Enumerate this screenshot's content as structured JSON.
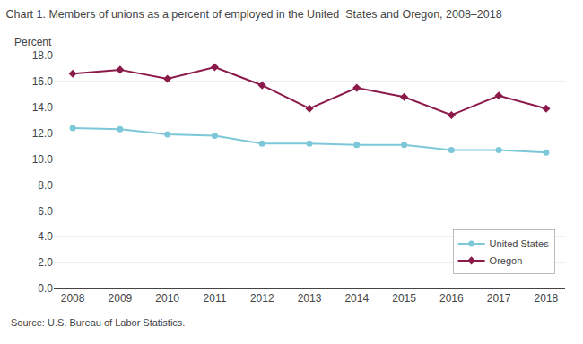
{
  "chart_data": {
    "type": "line",
    "title": "Chart 1. Members of unions as a percent of employed in the United  States and Oregon, 2008–2018",
    "y_label": "Percent",
    "source": "Source: U.S. Bureau of Labor Statistics.",
    "x": [
      2008,
      2009,
      2010,
      2011,
      2012,
      2013,
      2014,
      2015,
      2016,
      2017,
      2018
    ],
    "series": [
      {
        "name": "United States",
        "color": "#7dc8d8",
        "marker": "circle",
        "line_style": "solid",
        "values": [
          12.4,
          12.3,
          11.9,
          11.8,
          11.2,
          11.2,
          11.1,
          11.1,
          10.7,
          10.7,
          10.5
        ]
      },
      {
        "name": "Oregon",
        "color": "#8b1a4a",
        "marker": "diamond",
        "line_style": "solid",
        "values": [
          16.6,
          16.9,
          16.2,
          17.1,
          15.7,
          13.9,
          15.5,
          14.8,
          13.4,
          14.9,
          13.9
        ]
      }
    ],
    "xlim": [
      2007.6,
      2018.4
    ],
    "xticks": [
      2008,
      2009,
      2010,
      2011,
      2012,
      2013,
      2014,
      2015,
      2016,
      2017,
      2018
    ],
    "ylim": [
      0.0,
      18.0
    ],
    "yticks": [
      {
        "value": 0.0,
        "label": "0.0"
      },
      {
        "value": 2.0,
        "label": "2.0"
      },
      {
        "value": 4.0,
        "label": "4.0"
      },
      {
        "value": 6.0,
        "label": "6.0"
      },
      {
        "value": 8.0,
        "label": "8.0"
      },
      {
        "value": 10.0,
        "label": "10.0"
      },
      {
        "value": 12.0,
        "label": "12.0"
      },
      {
        "value": 14.0,
        "label": "14.0"
      },
      {
        "value": 16.0,
        "label": "16.0"
      },
      {
        "value": 18.0,
        "label": "18.0"
      }
    ],
    "grid": true,
    "legend": "lower right"
  }
}
